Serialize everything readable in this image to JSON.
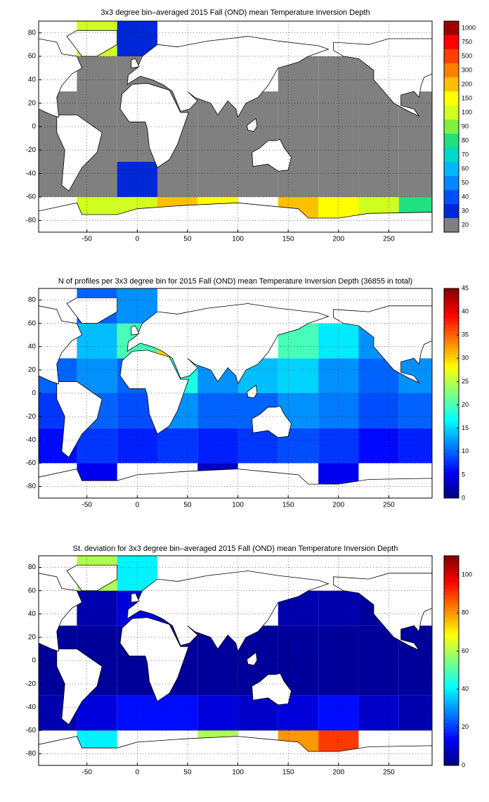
{
  "chart_data": [
    {
      "type": "categorical-heatmap-map",
      "title": "3x3 degree bin–averaged 2015 Fall (OND) mean Temperature Inversion Depth",
      "xlim": [
        -98,
        293
      ],
      "ylim": [
        -90,
        90
      ],
      "xticks": [
        -50,
        0,
        50,
        100,
        150,
        200,
        250
      ],
      "yticks": [
        -80,
        -60,
        -40,
        -20,
        0,
        20,
        40,
        60,
        80
      ],
      "grid": true,
      "xbins": [
        -98,
        -60,
        -20,
        20,
        60,
        100,
        140,
        180,
        220,
        260,
        293
      ],
      "ybins": [
        -90,
        -60,
        -30,
        0,
        30,
        60,
        90
      ],
      "values": [
        [
          null,
          100,
          100,
          200,
          150,
          null,
          200,
          150,
          100,
          80
        ],
        [
          20,
          20,
          30,
          20,
          20,
          20,
          20,
          20,
          20,
          20
        ],
        [
          20,
          20,
          20,
          20,
          20,
          20,
          20,
          20,
          20,
          20
        ],
        [
          20,
          20,
          20,
          20,
          20,
          20,
          20,
          20,
          20,
          20
        ],
        [
          null,
          20,
          20,
          20,
          null,
          null,
          20,
          20,
          20,
          null
        ],
        [
          null,
          100,
          30,
          null,
          null,
          null,
          null,
          null,
          null,
          null
        ]
      ],
      "levels": [
        20,
        30,
        40,
        50,
        60,
        70,
        80,
        90,
        100,
        150,
        200,
        300,
        500,
        750,
        1000
      ],
      "colors": [
        "#808080",
        "#0028d8",
        "#0050ff",
        "#0088ff",
        "#00b8ff",
        "#00d8c8",
        "#20e080",
        "#80f040",
        "#d0ff20",
        "#ffff00",
        "#ffc000",
        "#ff8000",
        "#ff4000",
        "#ff0000",
        "#a00000"
      ]
    },
    {
      "type": "heatmap-map",
      "title": "N of profiles per 3x3 degree bin for 2015 Fall (OND) mean Temperature Inversion Depth  (36855 in total)",
      "xlim": [
        -98,
        293
      ],
      "ylim": [
        -90,
        90
      ],
      "xticks": [
        -50,
        0,
        50,
        100,
        150,
        200,
        250
      ],
      "yticks": [
        -80,
        -60,
        -40,
        -20,
        0,
        20,
        40,
        60,
        80
      ],
      "grid": true,
      "xbins": [
        -98,
        -60,
        -20,
        20,
        60,
        100,
        140,
        180,
        220,
        260,
        293
      ],
      "ybins": [
        -90,
        -60,
        -30,
        0,
        30,
        60,
        90
      ],
      "values": [
        [
          null,
          5,
          null,
          null,
          3,
          null,
          null,
          5,
          null,
          null
        ],
        [
          6,
          8,
          7,
          8,
          7,
          8,
          9,
          8,
          6,
          7
        ],
        [
          8,
          10,
          9,
          12,
          10,
          10,
          12,
          11,
          9,
          10
        ],
        [
          10,
          12,
          10,
          18,
          12,
          14,
          15,
          12,
          10,
          12
        ],
        [
          null,
          14,
          20,
          30,
          null,
          null,
          20,
          16,
          12,
          null
        ],
        [
          null,
          10,
          12,
          null,
          null,
          null,
          null,
          null,
          null,
          null
        ]
      ],
      "clim": [
        0,
        45
      ],
      "cticks": [
        0,
        5,
        10,
        15,
        20,
        25,
        30,
        35,
        40,
        45
      ],
      "colormap": "jet"
    },
    {
      "type": "heatmap-map",
      "title": "St. deviation for 3x3 degree bin–averaged 2015 Fall (OND) mean Temperature Inversion Depth",
      "xlim": [
        -98,
        293
      ],
      "ylim": [
        -90,
        90
      ],
      "xticks": [
        -50,
        0,
        50,
        100,
        150,
        200,
        250
      ],
      "yticks": [
        -80,
        -60,
        -40,
        -20,
        0,
        20,
        40,
        60,
        80
      ],
      "grid": true,
      "xbins": [
        -98,
        -60,
        -20,
        20,
        60,
        100,
        140,
        180,
        220,
        260,
        293
      ],
      "ybins": [
        -90,
        -60,
        -30,
        0,
        30,
        60,
        90
      ],
      "values": [
        [
          null,
          40,
          null,
          null,
          60,
          null,
          80,
          90,
          null,
          null
        ],
        [
          5,
          10,
          15,
          15,
          10,
          8,
          10,
          15,
          8,
          5
        ],
        [
          3,
          3,
          3,
          3,
          3,
          3,
          3,
          3,
          3,
          3
        ],
        [
          3,
          3,
          3,
          3,
          3,
          3,
          3,
          3,
          3,
          3
        ],
        [
          null,
          5,
          10,
          5,
          null,
          null,
          5,
          5,
          3,
          null
        ],
        [
          null,
          60,
          40,
          null,
          null,
          null,
          null,
          null,
          null,
          null
        ]
      ],
      "clim": [
        0,
        110
      ],
      "cticks": [
        0,
        20,
        40,
        60,
        80,
        100
      ],
      "colormap": "jet"
    }
  ]
}
